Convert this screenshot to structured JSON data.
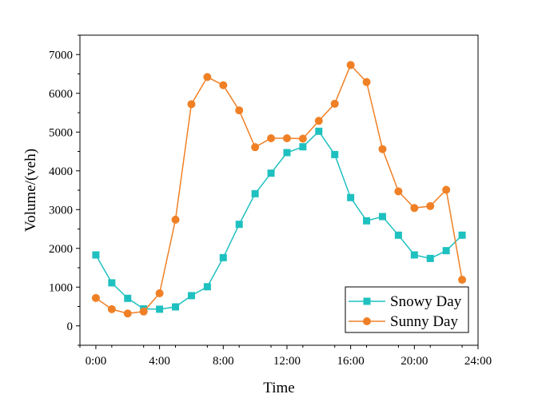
{
  "chart_data": {
    "type": "line",
    "title": "",
    "xlabel": "Time",
    "ylabel": "Volume/(veh)",
    "x": [
      0,
      1,
      2,
      3,
      4,
      5,
      6,
      7,
      8,
      9,
      10,
      11,
      12,
      13,
      14,
      15,
      16,
      17,
      18,
      19,
      20,
      21,
      22,
      23
    ],
    "x_ticks": [
      0,
      4,
      8,
      12,
      16,
      20,
      24
    ],
    "x_tick_labels": [
      "0:00",
      "4:00",
      "8:00",
      "12:00",
      "16:00",
      "20:00",
      "24:00"
    ],
    "xlim": [
      -1,
      24
    ],
    "y_ticks": [
      0,
      1000,
      2000,
      3000,
      4000,
      5000,
      6000,
      7000
    ],
    "y_tick_labels": [
      "0",
      "1000",
      "2000",
      "3000",
      "4000",
      "5000",
      "6000",
      "7000"
    ],
    "ylim": [
      -500,
      7500
    ],
    "grid": false,
    "legend_position": "bottom-right",
    "series": [
      {
        "name": "Snowy Day",
        "color": "#1fc0c0",
        "marker": "square",
        "values": [
          1830,
          1110,
          710,
          440,
          430,
          490,
          780,
          1010,
          1760,
          2620,
          3410,
          3940,
          4470,
          4620,
          5020,
          4420,
          3310,
          2710,
          2820,
          2340,
          1830,
          1740,
          1940,
          2340
        ]
      },
      {
        "name": "Sunny Day",
        "color": "#f08026",
        "marker": "circle",
        "values": [
          720,
          430,
          320,
          370,
          840,
          2740,
          5720,
          6420,
          6210,
          5560,
          4610,
          4840,
          4840,
          4830,
          5290,
          5730,
          6730,
          6290,
          4560,
          3470,
          3040,
          3090,
          3510,
          1190
        ]
      }
    ]
  }
}
